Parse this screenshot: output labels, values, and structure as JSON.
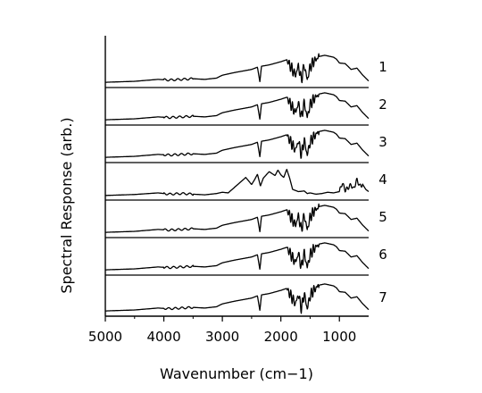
{
  "chart_data": {
    "type": "line",
    "title": "",
    "xlabel": "Wavenumber (cm−1)",
    "ylabel": "Spectral Response (arb.)",
    "xlim": [
      5000,
      500
    ],
    "x_reversed": true,
    "x_ticks": [
      5000,
      4000,
      3000,
      2000,
      1000
    ],
    "x_tick_labels": [
      "5000",
      "4000",
      "3000",
      "2000",
      "1000"
    ],
    "y_ticks_shown": false,
    "layout": "stacked offset traces",
    "series": [
      {
        "label": "1"
      },
      {
        "label": "2"
      },
      {
        "label": "3"
      },
      {
        "label": "4"
      },
      {
        "label": "5"
      },
      {
        "label": "6"
      },
      {
        "label": "7"
      }
    ],
    "standard_points": [
      [
        5000,
        0.08
      ],
      [
        4500,
        0.11
      ],
      [
        4100,
        0.17
      ],
      [
        3900,
        0.15
      ],
      [
        3700,
        0.17
      ],
      [
        3500,
        0.19
      ],
      [
        3300,
        0.17
      ],
      [
        3100,
        0.21
      ],
      [
        3000,
        0.3
      ],
      [
        2800,
        0.38
      ],
      [
        2500,
        0.48
      ],
      [
        2400,
        0.55
      ],
      [
        2360,
        0.1
      ],
      [
        2330,
        0.58
      ],
      [
        2200,
        0.62
      ],
      [
        2000,
        0.72
      ],
      [
        1900,
        0.78
      ],
      [
        1750,
        0.3
      ],
      [
        1700,
        0.6
      ],
      [
        1650,
        0.15
      ],
      [
        1600,
        0.62
      ],
      [
        1550,
        0.15
      ],
      [
        1500,
        0.55
      ],
      [
        1450,
        0.7
      ],
      [
        1350,
        0.88
      ],
      [
        1250,
        0.92
      ],
      [
        1100,
        0.86
      ],
      [
        1050,
        0.8
      ],
      [
        1000,
        0.68
      ],
      [
        900,
        0.66
      ],
      [
        800,
        0.48
      ],
      [
        700,
        0.52
      ],
      [
        600,
        0.3
      ],
      [
        500,
        0.12
      ]
    ],
    "spectrum_4_points": [
      [
        5000,
        0.06
      ],
      [
        4500,
        0.09
      ],
      [
        4100,
        0.14
      ],
      [
        3900,
        0.1
      ],
      [
        3700,
        0.12
      ],
      [
        3500,
        0.1
      ],
      [
        3300,
        0.08
      ],
      [
        3100,
        0.12
      ],
      [
        3000,
        0.16
      ],
      [
        2900,
        0.14
      ],
      [
        2800,
        0.3
      ],
      [
        2700,
        0.46
      ],
      [
        2600,
        0.62
      ],
      [
        2500,
        0.4
      ],
      [
        2450,
        0.55
      ],
      [
        2400,
        0.72
      ],
      [
        2350,
        0.35
      ],
      [
        2300,
        0.6
      ],
      [
        2200,
        0.8
      ],
      [
        2100,
        0.68
      ],
      [
        2050,
        0.85
      ],
      [
        2000,
        0.7
      ],
      [
        1950,
        0.62
      ],
      [
        1900,
        0.88
      ],
      [
        1850,
        0.6
      ],
      [
        1800,
        0.25
      ],
      [
        1700,
        0.18
      ],
      [
        1600,
        0.2
      ],
      [
        1550,
        0.12
      ],
      [
        1500,
        0.14
      ],
      [
        1400,
        0.1
      ],
      [
        1300,
        0.12
      ],
      [
        1200,
        0.16
      ],
      [
        1100,
        0.14
      ],
      [
        1000,
        0.18
      ],
      [
        950,
        0.45
      ],
      [
        900,
        0.22
      ],
      [
        850,
        0.3
      ],
      [
        800,
        0.4
      ],
      [
        760,
        0.25
      ],
      [
        700,
        0.55
      ],
      [
        650,
        0.35
      ],
      [
        600,
        0.4
      ],
      [
        550,
        0.25
      ],
      [
        500,
        0.18
      ]
    ]
  }
}
